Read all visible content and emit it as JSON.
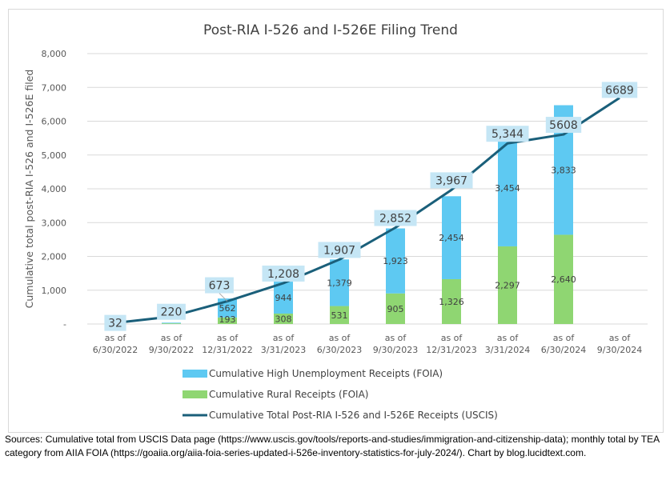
{
  "chart_data": {
    "type": "bar",
    "subtype": "stacked bar with line overlay",
    "title": "Post-RIA I-526 and I-526E Filing Trend",
    "xlabel": "",
    "ylabel": "Cumulative total post-RIA I-526 and I-526E filed",
    "ylim": [
      0,
      8000
    ],
    "yticks": [
      0,
      1000,
      2000,
      3000,
      4000,
      5000,
      6000,
      7000,
      8000
    ],
    "ytick_labels": [
      "-",
      "1,000",
      "2,000",
      "3,000",
      "4,000",
      "5,000",
      "6,000",
      "7,000",
      "8,000"
    ],
    "grid": true,
    "categories": [
      [
        "as of",
        "6/30/2022"
      ],
      [
        "as of",
        "9/30/2022"
      ],
      [
        "as of",
        "12/31/2022"
      ],
      [
        "as of",
        "3/31/2023"
      ],
      [
        "as of",
        "6/30/2023"
      ],
      [
        "as of",
        "9/30/2023"
      ],
      [
        "as of",
        "12/31/2023"
      ],
      [
        "as of",
        "3/31/2024"
      ],
      [
        "as of",
        "6/30/2024"
      ],
      [
        "as of",
        "9/30/2024"
      ]
    ],
    "series": [
      {
        "name": "Cumulative Rural Receipts (FOIA)",
        "kind": "bar",
        "color": "#8fd672",
        "values": [
          0,
          20,
          193,
          308,
          531,
          905,
          1326,
          2297,
          2640,
          null
        ],
        "labels": [
          "",
          "",
          "193",
          "308",
          "531",
          "905",
          "1,326",
          "2,297",
          "2,640",
          ""
        ]
      },
      {
        "name": "Cumulative High Unemployment Receipts (FOIA)",
        "kind": "bar",
        "color": "#5ec9f2",
        "values": [
          0,
          20,
          562,
          944,
          1379,
          1923,
          2454,
          3454,
          3833,
          null
        ],
        "labels": [
          "",
          "",
          "562",
          "944",
          "1,379",
          "1,923",
          "2,454",
          "3,454",
          "3,833",
          ""
        ]
      },
      {
        "name": "Cumulative Total Post-RIA I-526 and I-526E Receipts (USCIS)",
        "kind": "line",
        "color": "#1a5f7a",
        "values": [
          32,
          220,
          673,
          1208,
          1907,
          2852,
          3967,
          5344,
          5608,
          6689
        ],
        "labels": [
          "32",
          "220",
          "673",
          "1,208",
          "1,907",
          "2,852",
          "3,967",
          "5,344",
          "5608",
          "6689"
        ]
      }
    ],
    "legend": {
      "placement": "bottom",
      "entries": [
        {
          "label": "Cumulative High Unemployment Receipts (FOIA)",
          "kind": "bar",
          "color": "#5ec9f2"
        },
        {
          "label": "Cumulative Rural Receipts (FOIA)",
          "kind": "bar",
          "color": "#8fd672"
        },
        {
          "label": "Cumulative Total Post-RIA I-526 and I-526E Receipts (USCIS)",
          "kind": "line",
          "color": "#1a5f7a"
        }
      ]
    },
    "total_label_box_color": "#c5e6f5"
  },
  "source_note": "Sources: Cumulative total from USCIS Data page (https://www.uscis.gov/tools/reports-and-studies/immigration-and-citizenship-data); monthly total by TEA category from AIIA FOIA (https://goaiia.org/aiia-foia-series-updated-i-526e-inventory-statistics-for-july-2024/). Chart by blog.lucidtext.com."
}
